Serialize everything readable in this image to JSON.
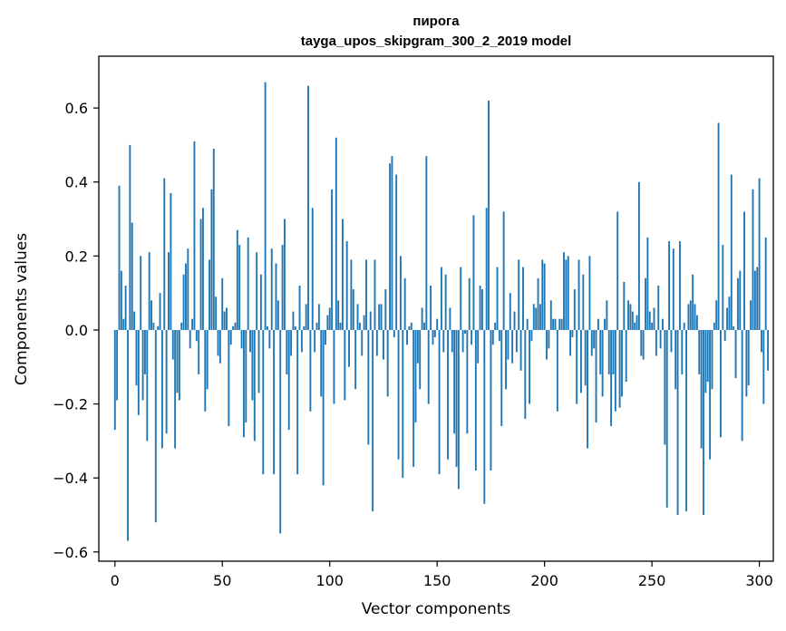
{
  "chart_data": {
    "type": "bar",
    "title": "пирога",
    "subtitle": "tayga_upos_skipgram_300_2_2019 model",
    "xlabel": "Vector components",
    "ylabel": "Components values",
    "xlim": [
      -7.5,
      306.5
    ],
    "ylim": [
      -0.625,
      0.74
    ],
    "xticks": [
      0,
      50,
      100,
      150,
      200,
      250,
      300
    ],
    "yticks": [
      -0.6,
      -0.4,
      -0.2,
      0.0,
      0.2,
      0.4,
      0.6
    ],
    "ytick_labels": [
      "−0.6",
      "−0.4",
      "−0.2",
      "0.0",
      "0.2",
      "0.4",
      "0.6"
    ],
    "bar_color": "#1f77b4",
    "grid": false,
    "values": [
      -0.27,
      -0.19,
      0.39,
      0.16,
      0.03,
      0.12,
      -0.57,
      0.5,
      0.29,
      0.05,
      -0.15,
      -0.23,
      0.2,
      -0.19,
      -0.12,
      -0.3,
      0.21,
      0.08,
      0.02,
      -0.52,
      0.01,
      0.1,
      -0.32,
      0.41,
      -0.28,
      0.21,
      0.37,
      -0.08,
      -0.32,
      -0.17,
      -0.19,
      0.02,
      0.15,
      0.18,
      0.22,
      -0.05,
      0.03,
      0.51,
      -0.03,
      -0.12,
      0.3,
      0.33,
      -0.22,
      -0.16,
      0.19,
      0.38,
      0.49,
      0.09,
      -0.07,
      -0.09,
      0.14,
      0.05,
      0.06,
      -0.26,
      -0.04,
      0.01,
      0.02,
      0.27,
      0.23,
      -0.05,
      -0.29,
      -0.25,
      0.25,
      -0.06,
      -0.19,
      -0.3,
      0.21,
      -0.17,
      0.15,
      -0.39,
      0.67,
      0.01,
      -0.05,
      0.22,
      -0.39,
      0.18,
      0.08,
      -0.55,
      0.23,
      0.3,
      -0.12,
      -0.27,
      -0.07,
      0.05,
      0.01,
      -0.39,
      0.12,
      -0.06,
      0.01,
      0.07,
      0.66,
      -0.22,
      0.33,
      -0.06,
      0.02,
      0.07,
      -0.18,
      -0.42,
      -0.04,
      0.04,
      0.06,
      0.38,
      -0.2,
      0.52,
      0.08,
      0.02,
      0.3,
      -0.19,
      0.24,
      -0.1,
      0.19,
      0.11,
      -0.16,
      0.07,
      0.02,
      -0.07,
      0.04,
      0.19,
      -0.31,
      0.05,
      -0.49,
      0.19,
      -0.07,
      0.07,
      0.07,
      -0.08,
      0.11,
      -0.18,
      0.45,
      0.47,
      -0.02,
      0.42,
      -0.35,
      0.2,
      -0.4,
      0.14,
      -0.04,
      0.01,
      0.02,
      -0.37,
      -0.25,
      -0.09,
      -0.16,
      0.06,
      0.02,
      0.47,
      -0.2,
      0.12,
      -0.04,
      -0.02,
      0.03,
      -0.39,
      0.17,
      -0.06,
      0.15,
      -0.35,
      0.06,
      -0.06,
      -0.28,
      -0.37,
      -0.43,
      0.17,
      -0.06,
      -0.01,
      -0.28,
      0.14,
      -0.04,
      0.31,
      -0.38,
      -0.09,
      0.12,
      0.11,
      -0.47,
      0.33,
      0.62,
      -0.38,
      -0.04,
      0.02,
      0.17,
      -0.03,
      -0.26,
      0.32,
      -0.16,
      -0.08,
      0.1,
      -0.09,
      0.05,
      -0.06,
      0.19,
      -0.11,
      0.17,
      -0.24,
      0.03,
      -0.2,
      -0.03,
      0.07,
      0.06,
      0.14,
      0.07,
      0.19,
      0.18,
      -0.08,
      -0.05,
      0.08,
      0.03,
      0.03,
      -0.22,
      0.03,
      0.03,
      0.21,
      0.19,
      0.2,
      -0.07,
      -0.02,
      0.11,
      -0.2,
      0.19,
      -0.17,
      0.15,
      -0.15,
      -0.32,
      0.2,
      -0.07,
      -0.05,
      -0.25,
      0.03,
      -0.12,
      -0.18,
      0.03,
      0.08,
      -0.12,
      -0.26,
      -0.12,
      -0.22,
      0.32,
      -0.21,
      -0.18,
      0.13,
      -0.14,
      0.08,
      0.07,
      0.05,
      0.02,
      0.04,
      0.4,
      -0.07,
      -0.08,
      0.14,
      0.25,
      0.05,
      0.02,
      0.06,
      -0.07,
      0.12,
      -0.05,
      0.03,
      -0.31,
      -0.48,
      0.24,
      -0.06,
      0.22,
      -0.16,
      -0.5,
      0.24,
      -0.12,
      0.02,
      -0.49,
      0.07,
      0.08,
      0.15,
      0.07,
      0.04,
      -0.12,
      -0.32,
      -0.5,
      -0.17,
      -0.14,
      -0.35,
      -0.16,
      0.02,
      0.08,
      0.56,
      -0.29,
      0.23,
      -0.03,
      0.06,
      0.09,
      0.42,
      0.01,
      -0.13,
      0.14,
      0.16,
      -0.3,
      0.32,
      -0.18,
      -0.15,
      0.08,
      0.38,
      0.16,
      0.17,
      0.41,
      -0.06,
      -0.2,
      0.25,
      -0.11
    ]
  }
}
